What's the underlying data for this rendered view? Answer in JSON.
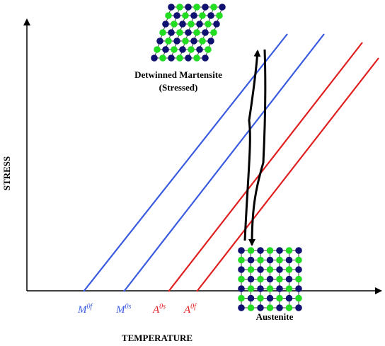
{
  "diagram": {
    "y_axis_label": "STRESS",
    "x_axis_label": "TEMPERATURE",
    "lines": [
      {
        "label": "M",
        "superscript": "0f",
        "color": "#3a5be0"
      },
      {
        "label": "M",
        "superscript": "0s",
        "color": "#3a5be0"
      },
      {
        "label": "A",
        "superscript": "0s",
        "color": "#e02020"
      },
      {
        "label": "A",
        "superscript": "0f",
        "color": "#e02020"
      }
    ],
    "martensite_label": [
      "Detwinned Martensite",
      "(Stressed)"
    ],
    "austenite_label": "Austenite"
  }
}
